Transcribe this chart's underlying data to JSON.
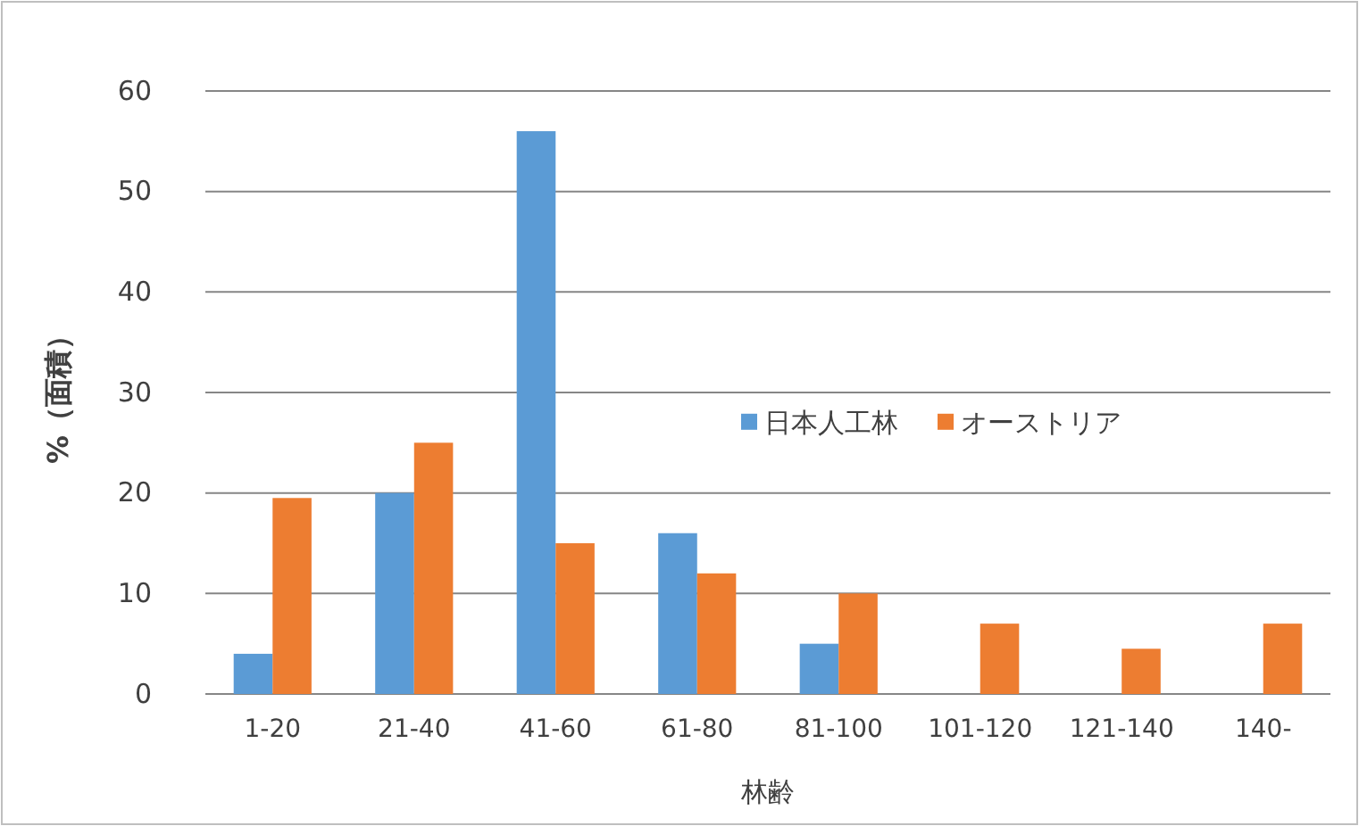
{
  "chart_data": {
    "type": "bar",
    "xlabel": "林齢",
    "ylabel": "%（面積）",
    "categories": [
      "1-20",
      "21-40",
      "41-60",
      "61-80",
      "81-100",
      "101-120",
      "121-140",
      "140-"
    ],
    "series": [
      {
        "name": "日本人工林",
        "color": "#5b9bd5",
        "values": [
          4,
          20,
          56,
          16,
          5,
          null,
          null,
          null
        ]
      },
      {
        "name": "オーストリア",
        "color": "#ed7d31",
        "values": [
          19.5,
          25,
          15,
          12,
          10,
          7,
          4.5,
          7
        ]
      }
    ],
    "ylim": [
      0,
      60
    ],
    "yticks": [
      0,
      10,
      20,
      30,
      40,
      50,
      60
    ],
    "grid": "y",
    "legend": "right"
  }
}
